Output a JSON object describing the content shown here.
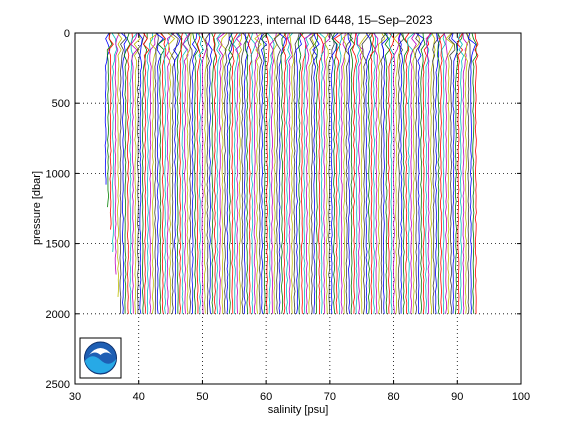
{
  "chart_data": {
    "type": "line",
    "title": "WMO ID 3901223, internal ID 6448, 15–Sep–2023",
    "xlabel": "salinity [psu]",
    "ylabel": "pressure [dbar]",
    "xlim": [
      30,
      100
    ],
    "ylim": [
      2500,
      0
    ],
    "y_reversed": true,
    "xticks": [
      30,
      40,
      50,
      60,
      70,
      80,
      90,
      100
    ],
    "yticks": [
      0,
      500,
      1000,
      1500,
      2000,
      2500
    ],
    "xtick_labels": [
      "30",
      "40",
      "50",
      "60",
      "70",
      "80",
      "90",
      "100"
    ],
    "ytick_labels": [
      "0",
      "500",
      "1000",
      "1500",
      "2000",
      "2500"
    ],
    "grid": "dotted",
    "profiles": {
      "count": 150,
      "first_salinity": 34.8,
      "spacing_psu": 0.39,
      "max_pressure": 2010,
      "colors": [
        "#0000ff",
        "#008000",
        "#ff0000",
        "#00bfbf",
        "#bf00bf",
        "#bfbf00",
        "#404040"
      ]
    },
    "logo": "noaa-logo"
  }
}
